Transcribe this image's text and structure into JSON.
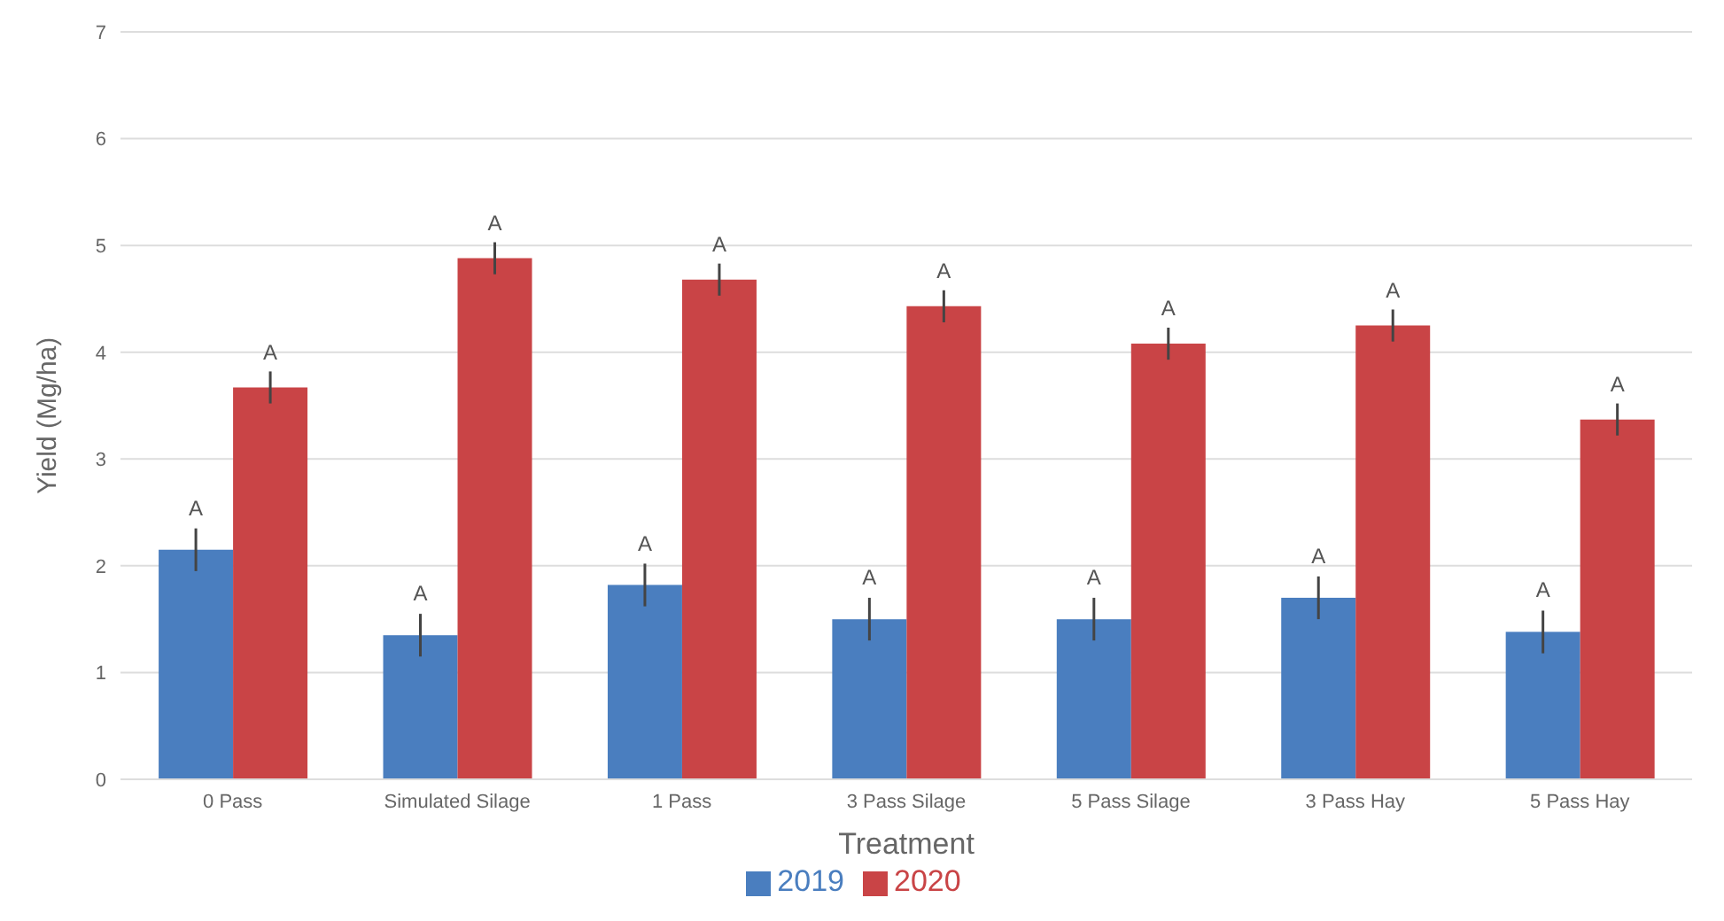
{
  "chart_data": {
    "type": "bar",
    "xlabel": "Treatment",
    "ylabel": "Yield (Mg/ha)",
    "categories": [
      "0 Pass",
      "Simulated Silage",
      "1 Pass",
      "3 Pass Silage",
      "5 Pass Silage",
      "3 Pass Hay",
      "5 Pass Hay"
    ],
    "series": [
      {
        "name": "2019",
        "color": "#4a7ebf",
        "values": [
          2.15,
          1.35,
          1.82,
          1.5,
          1.5,
          1.7,
          1.38
        ],
        "errors": [
          0.2,
          0.2,
          0.2,
          0.2,
          0.2,
          0.2,
          0.2
        ]
      },
      {
        "name": "2020",
        "color": "#c94446",
        "values": [
          3.67,
          4.88,
          4.68,
          4.43,
          4.08,
          4.25,
          3.37
        ],
        "errors": [
          0.15,
          0.15,
          0.15,
          0.15,
          0.15,
          0.15,
          0.15
        ]
      }
    ],
    "annotations": [
      {
        "text": "A",
        "x": "0 Pass",
        "y": 2.15
      },
      {
        "text": "A",
        "x": "0 Pass",
        "y": 3.67
      },
      {
        "text": "A",
        "x": "Simulated Silage",
        "y": 1.35
      },
      {
        "text": "A",
        "x": "Simulated Silage",
        "y": 4.88
      },
      {
        "text": "A",
        "x": "1 Pass",
        "y": 1.82
      },
      {
        "text": "A",
        "x": "1 Pass",
        "y": 4.68
      },
      {
        "text": "A",
        "x": "3 Pass Silage",
        "y": 1.5
      },
      {
        "text": "A",
        "x": "3 Pass Silage",
        "y": 4.43
      },
      {
        "text": "A",
        "x": "5 Pass Silage",
        "y": 1.5
      },
      {
        "text": "A",
        "x": "5 Pass Silage",
        "y": 4.08
      },
      {
        "text": "A",
        "x": "3 Pass Hay",
        "y": 1.7
      },
      {
        "text": "A",
        "x": "3 Pass Hay",
        "y": 4.25
      },
      {
        "text": "A",
        "x": "5 Pass Hay",
        "y": 1.38
      },
      {
        "text": "A",
        "x": "5 Pass Hay",
        "y": 3.37
      }
    ],
    "ylim": [
      0,
      7
    ],
    "yticks": [
      0,
      1,
      2,
      3,
      4,
      5,
      6,
      7
    ],
    "grid": "y",
    "legend": "bottom"
  }
}
